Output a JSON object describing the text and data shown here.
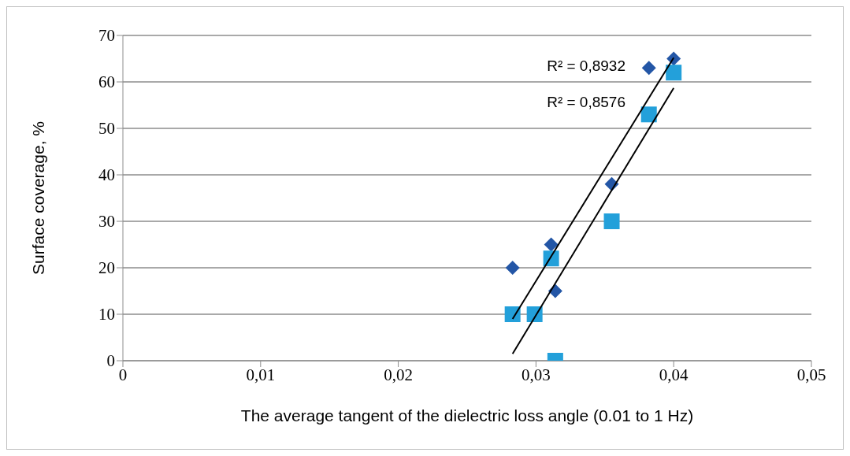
{
  "chart_data": {
    "type": "scatter",
    "xlabel": "The average tangent of the dielectric loss angle (0.01 to 1 Hz)",
    "ylabel": "Surface coverage, %",
    "xlim": [
      0,
      0.05
    ],
    "xticks": [
      {
        "value": 0,
        "label": "0"
      },
      {
        "value": 0.01,
        "label": "0,01"
      },
      {
        "value": 0.02,
        "label": "0,02"
      },
      {
        "value": 0.03,
        "label": "0,03"
      },
      {
        "value": 0.04,
        "label": "0,04"
      },
      {
        "value": 0.05,
        "label": "0,05"
      }
    ],
    "ylim": [
      0,
      70
    ],
    "yticks": [
      0,
      10,
      20,
      30,
      40,
      50,
      60,
      70
    ],
    "grid": "y",
    "legend": false,
    "series": [
      {
        "marker": "diamond",
        "color": "#2356a6",
        "x": [
          0.0283,
          0.0311,
          0.0314,
          0.0355,
          0.0382,
          0.04
        ],
        "values": [
          20,
          25,
          15,
          38,
          63,
          65
        ]
      },
      {
        "marker": "square",
        "color": "#23a0da",
        "x": [
          0.0283,
          0.0299,
          0.0314,
          0.0311,
          0.0355,
          0.0382,
          0.04
        ],
        "values": [
          10,
          10,
          0,
          22,
          30,
          53,
          62
        ]
      },
      {
        "type": "line",
        "marker": "none",
        "line_style": "solid",
        "color": "#000000",
        "x": [
          0.0283,
          0.04
        ],
        "values": [
          9,
          65.2
        ]
      },
      {
        "type": "line",
        "marker": "none",
        "line_style": "solid",
        "color": "#000000",
        "x": [
          0.0283,
          0.04
        ],
        "values": [
          1.5,
          58.7
        ]
      }
    ],
    "annotations": [
      "R² = 0,8932",
      "R² = 0,8576"
    ]
  }
}
